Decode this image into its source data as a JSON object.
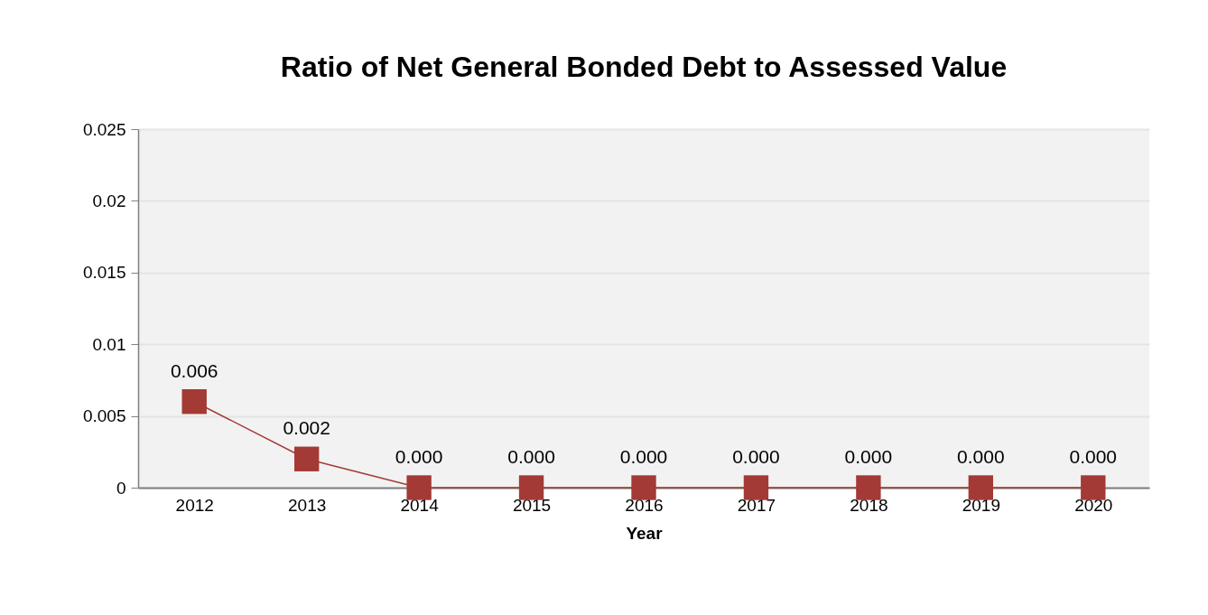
{
  "chart_data": {
    "type": "line",
    "title": "Ratio of Net General Bonded Debt to Assessed Value",
    "xlabel": "Year",
    "categories": [
      "2012",
      "2013",
      "2014",
      "2015",
      "2016",
      "2017",
      "2018",
      "2019",
      "2020"
    ],
    "series": [
      {
        "color": "#a33a35",
        "values": [
          0.006,
          0.002,
          0.0,
          0.0,
          0.0,
          0.0,
          0.0,
          0.0,
          0.0
        ],
        "value_labels": [
          "0.006",
          "0.002",
          "0.000",
          "0.000",
          "0.000",
          "0.000",
          "0.000",
          "0.000",
          "0.000"
        ]
      }
    ],
    "ylim": [
      0,
      0.025
    ],
    "yticks": [
      0,
      0.005,
      0.01,
      0.015,
      0.02,
      0.025
    ],
    "grid": "y",
    "marker": "square",
    "line_style": "solid"
  }
}
